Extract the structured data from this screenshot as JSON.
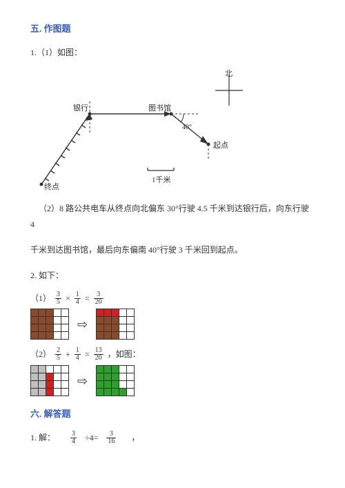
{
  "section5": {
    "title": "五. 作图题"
  },
  "q1": {
    "line1": "1.（1）如图：",
    "labels": {
      "north": "北",
      "bank": "银行",
      "library": "图书馆",
      "angle": "40°",
      "start": "起点",
      "end": "终点",
      "scale": "1千米"
    },
    "line2": "（2）8 路公共电车从终点向北偏东 30°行驶 4.5 千米到达银行后，向东行驶 4",
    "line3": "千米到达图书馆，最后向东偏南 40°行驶 3 千米回到起点。"
  },
  "q2": {
    "intro": "2. 如下：",
    "eq1": {
      "prefix": "（1）",
      "f1n": "3",
      "f1d": "5",
      "op1": "×",
      "f2n": "1",
      "f2d": "4",
      "eq": "=",
      "f3n": "3",
      "f3d": "20"
    },
    "colors1a": {
      "brown": "#8b4a2a",
      "white": "#ffffff"
    },
    "colors1b": {
      "brown": "#8b4a2a",
      "red": "#d22020",
      "white": "#ffffff"
    },
    "eq2": {
      "prefix": "（2）",
      "f1n": "2",
      "f1d": "5",
      "op1": "+",
      "f2n": "1",
      "f2d": "4",
      "eq": "=",
      "f3n": "13",
      "f3d": "20",
      "tail": "，如图："
    },
    "colors2a": {
      "grey": "#bfbfbf",
      "red": "#d22020",
      "white": "#ffffff"
    },
    "colors2b": {
      "green": "#2aa32a",
      "white": "#ffffff"
    }
  },
  "section6": {
    "title": "六. 解答题"
  },
  "solve": {
    "prefix": "1. 解：",
    "f1n": "3",
    "f1d": "4",
    "mid": "÷4=",
    "f2n": "3",
    "f2d": "16",
    "tail": "，"
  }
}
